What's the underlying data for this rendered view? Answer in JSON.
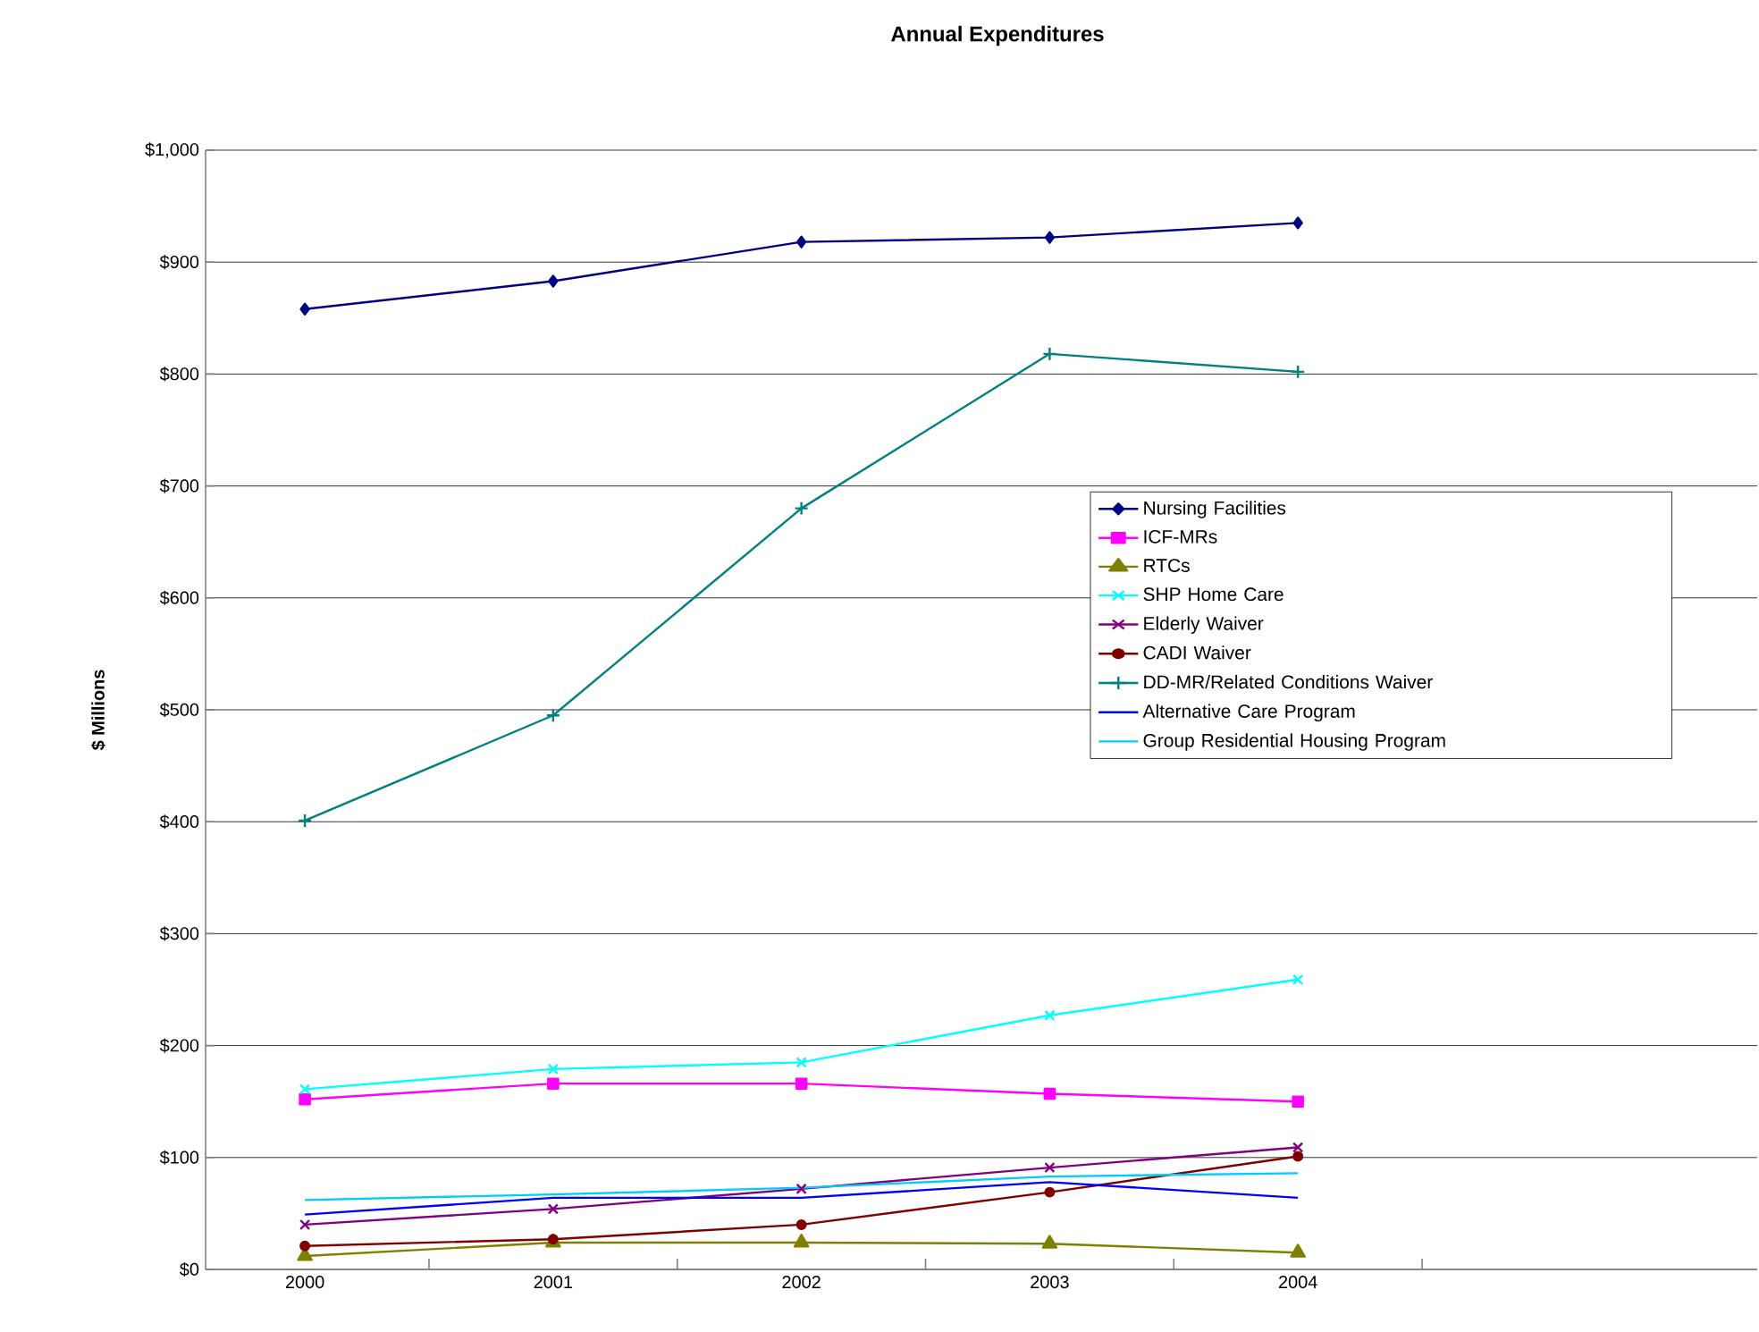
{
  "chart_data": {
    "type": "line",
    "title": "Annual Expenditures",
    "ylabel": "$ Millions",
    "categories": [
      "2000",
      "2001",
      "2002",
      "2003",
      "2004"
    ],
    "ylim": [
      0,
      1000
    ],
    "yticks": [
      {
        "value": 0,
        "label": "$0"
      },
      {
        "value": 100,
        "label": "$100"
      },
      {
        "value": 200,
        "label": "$200"
      },
      {
        "value": 300,
        "label": "$300"
      },
      {
        "value": 400,
        "label": "$400"
      },
      {
        "value": 500,
        "label": "$500"
      },
      {
        "value": 600,
        "label": "$600"
      },
      {
        "value": 700,
        "label": "$700"
      },
      {
        "value": 800,
        "label": "$800"
      },
      {
        "value": 900,
        "label": "$900"
      },
      {
        "value": 1000,
        "label": "$1,000"
      }
    ],
    "grid": "y",
    "legend": "right",
    "series": [
      {
        "name": "Nursing Facilities",
        "color": "#000080",
        "marker": "diamond",
        "values": [
          858,
          883,
          918,
          922,
          935
        ]
      },
      {
        "name": "ICF-MRs",
        "color": "#ff00ff",
        "marker": "square",
        "values": [
          152,
          166,
          166,
          157,
          150
        ]
      },
      {
        "name": "RTCs",
        "color": "#808000",
        "marker": "triangle",
        "values": [
          12,
          24,
          24,
          23,
          15
        ]
      },
      {
        "name": "SHP Home Care",
        "color": "#00ffff",
        "marker": "cross",
        "values": [
          161,
          179,
          185,
          227,
          259
        ]
      },
      {
        "name": "Elderly Waiver",
        "color": "#800080",
        "marker": "cross",
        "values": [
          40,
          54,
          72,
          91,
          109
        ]
      },
      {
        "name": "CADI Waiver",
        "color": "#800000",
        "marker": "circle",
        "values": [
          21,
          27,
          40,
          69,
          101
        ]
      },
      {
        "name": "DD-MR/Related Conditions Waiver",
        "color": "#008080",
        "marker": "plus",
        "values": [
          401,
          495,
          680,
          818,
          802
        ]
      },
      {
        "name": "Alternative Care Program",
        "color": "#0000ff",
        "marker": "none",
        "values": [
          49,
          64,
          64,
          78,
          64
        ]
      },
      {
        "name": "Group Residential Housing Program",
        "color": "#00ccff",
        "marker": "none",
        "values": [
          62,
          67,
          73,
          83,
          86
        ]
      }
    ]
  }
}
